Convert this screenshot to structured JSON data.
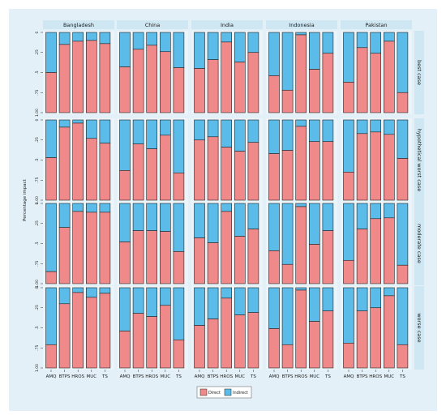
{
  "chart_data": {
    "type": "bar",
    "stacked": true,
    "ylabel": "Percentage impact",
    "yticks": [
      "0",
      ".25",
      ".5",
      ".75",
      "1.00"
    ],
    "ylim": [
      0,
      1
    ],
    "columns": [
      "Bangladesh",
      "China",
      "India",
      "Indonesia",
      "Pakistan"
    ],
    "rows": [
      "best case",
      "hypothetical worst case",
      "moderate case",
      "worse case"
    ],
    "categories": [
      "AMQ",
      "BTPS",
      "HROS",
      "MUC",
      "TS"
    ],
    "series_names": [
      "Direct",
      "Indirect"
    ],
    "colors": {
      "direct": "#f08a8a",
      "indirect": "#5bbcea",
      "strip": "#cfe7f3",
      "panel": "#eaf4f9",
      "outer": "#e3f0f7"
    },
    "legend_position": "bottom",
    "direct_values": {
      "best case": {
        "Bangladesh": [
          0.5,
          0.85,
          0.89,
          0.9,
          0.86
        ],
        "China": [
          0.57,
          0.79,
          0.84,
          0.76,
          0.56
        ],
        "India": [
          0.55,
          0.66,
          0.88,
          0.63,
          0.75
        ],
        "Indonesia": [
          0.46,
          0.28,
          0.97,
          0.54,
          0.74
        ],
        "Pakistan": [
          0.38,
          0.81,
          0.74,
          0.89,
          0.25
        ]
      },
      "hypothetical worst case": {
        "Bangladesh": [
          0.53,
          0.91,
          0.96,
          0.77,
          0.71
        ],
        "China": [
          0.37,
          0.7,
          0.64,
          0.81,
          0.34
        ],
        "India": [
          0.75,
          0.79,
          0.66,
          0.61,
          0.72
        ],
        "Indonesia": [
          0.58,
          0.62,
          0.92,
          0.73,
          0.73
        ],
        "Pakistan": [
          0.35,
          0.83,
          0.85,
          0.82,
          0.52
        ]
      },
      "moderate case": {
        "Bangladesh": [
          0.15,
          0.7,
          0.9,
          0.89,
          0.89
        ],
        "China": [
          0.52,
          0.66,
          0.66,
          0.65,
          0.4
        ],
        "India": [
          0.57,
          0.51,
          0.9,
          0.59,
          0.68
        ],
        "Indonesia": [
          0.41,
          0.24,
          0.96,
          0.49,
          0.66
        ],
        "Pakistan": [
          0.29,
          0.68,
          0.81,
          0.82,
          0.23
        ]
      },
      "worse case": {
        "Bangladesh": [
          0.29,
          0.8,
          0.94,
          0.88,
          0.93
        ],
        "China": [
          0.46,
          0.68,
          0.64,
          0.78,
          0.35
        ],
        "India": [
          0.53,
          0.61,
          0.87,
          0.66,
          0.69
        ],
        "Indonesia": [
          0.49,
          0.29,
          0.97,
          0.58,
          0.71
        ],
        "Pakistan": [
          0.31,
          0.71,
          0.75,
          0.9,
          0.29
        ]
      }
    }
  }
}
